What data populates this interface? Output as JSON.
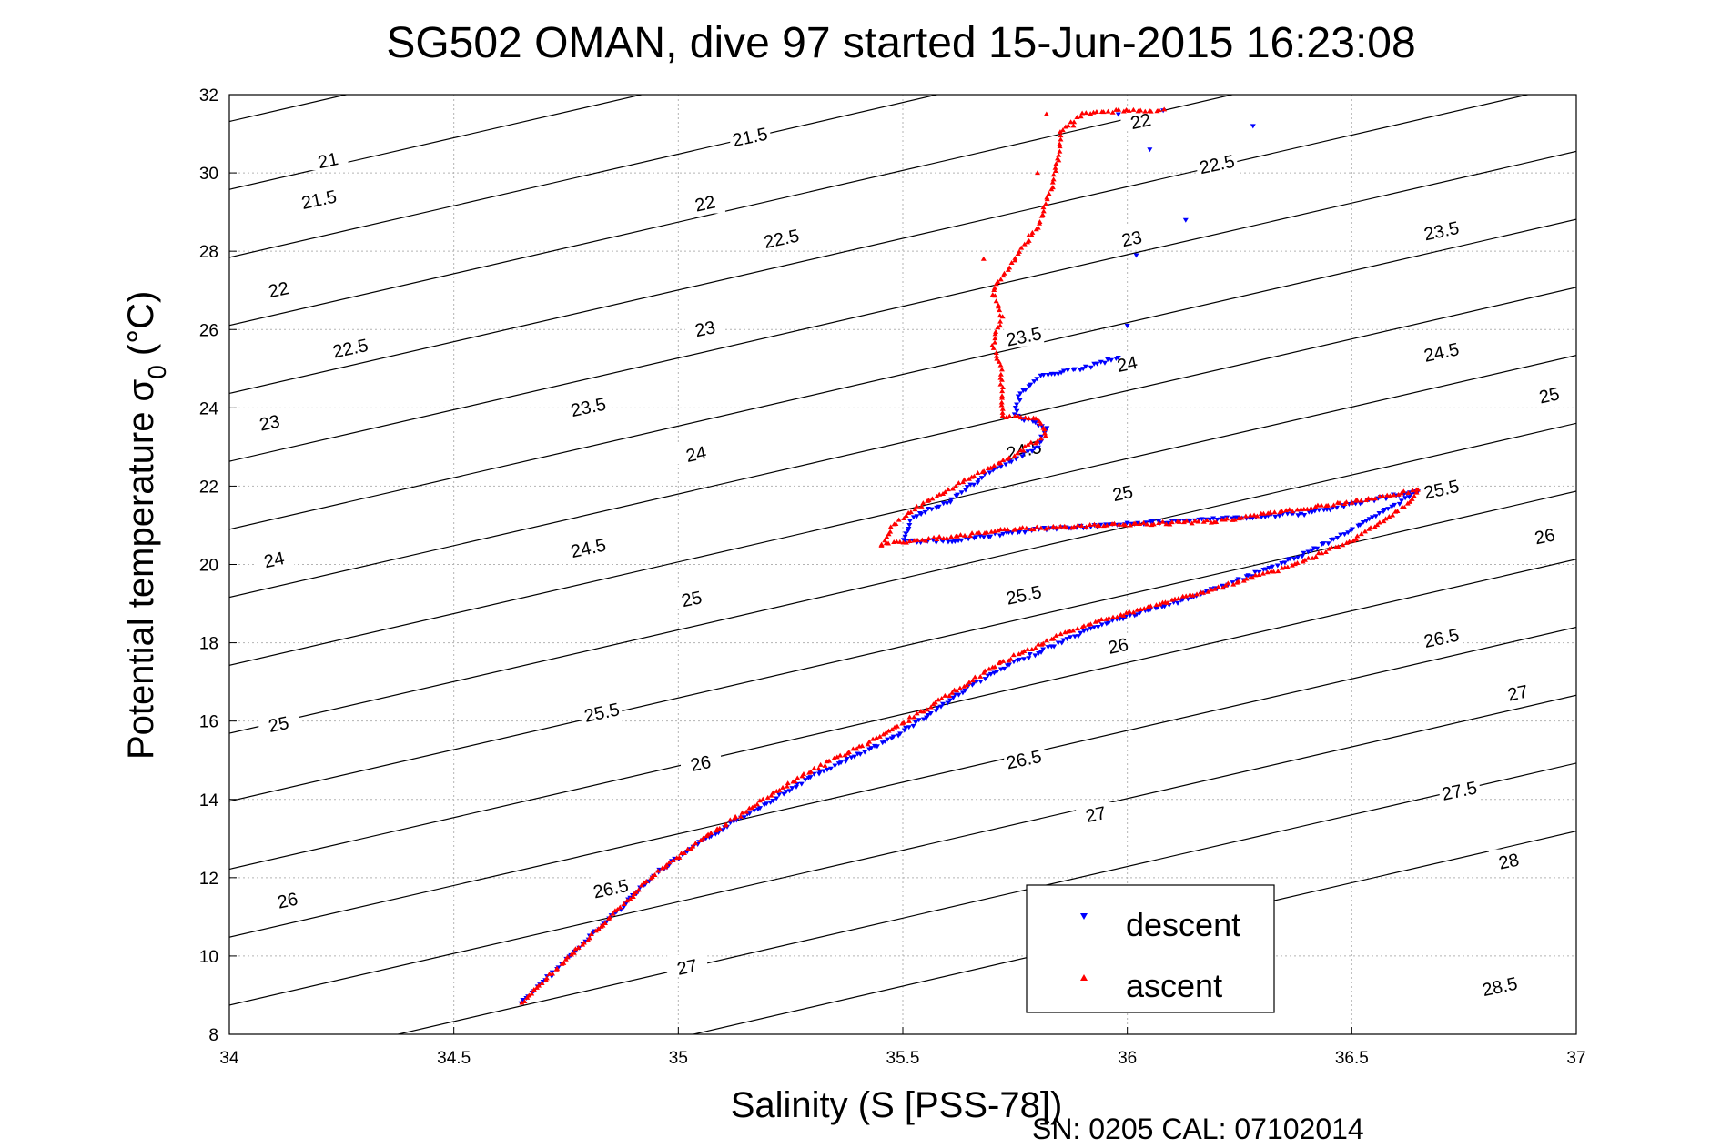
{
  "chart_data": {
    "type": "scatter",
    "title": "SG502 OMAN, dive 97 started 15-Jun-2015 16:23:08",
    "xlabel": "Salinity (S [PSS-78])",
    "ylabel_main": "Potential temperature σ",
    "ylabel_sub": "0",
    "ylabel_unit": "(°C)",
    "xlim": [
      34,
      37
    ],
    "ylim": [
      8,
      32
    ],
    "xticks": [
      "34",
      "34.5",
      "35",
      "35.5",
      "36",
      "36.5",
      "37"
    ],
    "yticks": [
      "8",
      "10",
      "12",
      "14",
      "16",
      "18",
      "20",
      "22",
      "24",
      "26",
      "28",
      "30",
      "32"
    ],
    "grid": true,
    "legend_position": "bottom-right",
    "footer": "SN: 0205  CAL: 07102014",
    "colors": {
      "descent": "#0000ff",
      "ascent": "#ff0000",
      "contour": "#000000"
    },
    "isopycnals": [
      21,
      21.5,
      22,
      22.5,
      23,
      23.5,
      24,
      24.5,
      25,
      25.5,
      26,
      26.5,
      27,
      27.5,
      28,
      28.5
    ],
    "isopycnal_labels": [
      {
        "text": "21",
        "s": 34.22,
        "t": 30.3
      },
      {
        "text": "21.5",
        "s": 34.2,
        "t": 29.3
      },
      {
        "text": "22",
        "s": 34.11,
        "t": 27.0
      },
      {
        "text": "22.5",
        "s": 34.27,
        "t": 25.5
      },
      {
        "text": "23",
        "s": 34.09,
        "t": 23.6
      },
      {
        "text": "23.5",
        "s": 34.8,
        "t": 24.0
      },
      {
        "text": "21.5",
        "s": 35.16,
        "t": 30.9
      },
      {
        "text": "22",
        "s": 35.06,
        "t": 29.2
      },
      {
        "text": "22.5",
        "s": 35.23,
        "t": 28.3
      },
      {
        "text": "23",
        "s": 35.06,
        "t": 26.0
      },
      {
        "text": "24",
        "s": 34.1,
        "t": 20.1
      },
      {
        "text": "24",
        "s": 35.04,
        "t": 22.8
      },
      {
        "text": "24.5",
        "s": 34.8,
        "t": 20.4
      },
      {
        "text": "25",
        "s": 34.11,
        "t": 15.9
      },
      {
        "text": "25",
        "s": 35.03,
        "t": 19.1
      },
      {
        "text": "25.5",
        "s": 34.83,
        "t": 16.2
      },
      {
        "text": "26",
        "s": 34.13,
        "t": 11.4
      },
      {
        "text": "26",
        "s": 35.05,
        "t": 14.9
      },
      {
        "text": "26.5",
        "s": 34.85,
        "t": 11.7
      },
      {
        "text": "27",
        "s": 35.02,
        "t": 9.7
      },
      {
        "text": "22",
        "s": 36.03,
        "t": 31.3
      },
      {
        "text": "22.5",
        "s": 36.2,
        "t": 30.2
      },
      {
        "text": "23",
        "s": 36.01,
        "t": 28.3
      },
      {
        "text": "23.5",
        "s": 35.77,
        "t": 25.8
      },
      {
        "text": "24",
        "s": 36.0,
        "t": 25.1
      },
      {
        "text": "24.5",
        "s": 35.77,
        "t": 22.9
      },
      {
        "text": "25",
        "s": 35.99,
        "t": 21.8
      },
      {
        "text": "25.5",
        "s": 35.77,
        "t": 19.2
      },
      {
        "text": "26",
        "s": 35.98,
        "t": 17.9
      },
      {
        "text": "26.5",
        "s": 35.77,
        "t": 15.0
      },
      {
        "text": "27",
        "s": 35.93,
        "t": 13.6
      },
      {
        "text": "23.5",
        "s": 36.7,
        "t": 28.5
      },
      {
        "text": "24.5",
        "s": 36.7,
        "t": 25.4
      },
      {
        "text": "25",
        "s": 36.94,
        "t": 24.3
      },
      {
        "text": "25.5",
        "s": 36.7,
        "t": 21.9
      },
      {
        "text": "26",
        "s": 36.93,
        "t": 20.7
      },
      {
        "text": "26.5",
        "s": 36.7,
        "t": 18.1
      },
      {
        "text": "27",
        "s": 36.87,
        "t": 16.7
      },
      {
        "text": "27.5",
        "s": 36.74,
        "t": 14.2
      },
      {
        "text": "28",
        "s": 36.85,
        "t": 12.4
      },
      {
        "text": "28.5",
        "s": 36.83,
        "t": 9.2
      }
    ],
    "series": [
      {
        "name": "descent",
        "marker": "triangle-down",
        "path": [
          [
            34.65,
            8.8
          ],
          [
            34.75,
            9.9
          ],
          [
            34.85,
            11.0
          ],
          [
            34.95,
            12.1
          ],
          [
            35.05,
            12.9
          ],
          [
            35.15,
            13.6
          ],
          [
            35.3,
            14.6
          ],
          [
            35.45,
            15.4
          ],
          [
            35.55,
            16.1
          ],
          [
            35.65,
            16.9
          ],
          [
            35.75,
            17.5
          ],
          [
            35.85,
            18.0
          ],
          [
            35.95,
            18.5
          ],
          [
            36.1,
            19.0
          ],
          [
            36.25,
            19.6
          ],
          [
            36.4,
            20.3
          ],
          [
            36.55,
            21.2
          ],
          [
            36.65,
            21.9
          ],
          [
            36.4,
            21.3
          ],
          [
            36.1,
            21.1
          ],
          [
            35.8,
            20.9
          ],
          [
            35.6,
            20.6
          ],
          [
            35.5,
            20.6
          ],
          [
            35.52,
            21.2
          ],
          [
            35.6,
            21.6
          ],
          [
            35.7,
            22.4
          ],
          [
            35.8,
            23.0
          ],
          [
            35.82,
            23.5
          ],
          [
            35.75,
            23.8
          ],
          [
            35.76,
            24.3
          ],
          [
            35.8,
            24.8
          ],
          [
            35.9,
            25.0
          ],
          [
            35.98,
            25.3
          ]
        ],
        "extra_points": [
          [
            36.0,
            26.1
          ],
          [
            36.02,
            27.9
          ],
          [
            36.13,
            28.8
          ],
          [
            36.05,
            30.6
          ],
          [
            36.28,
            31.2
          ],
          [
            36.08,
            31.6
          ],
          [
            35.98,
            31.5
          ]
        ]
      },
      {
        "name": "ascent",
        "marker": "triangle-up",
        "path": [
          [
            34.65,
            8.8
          ],
          [
            34.75,
            9.9
          ],
          [
            34.85,
            11.0
          ],
          [
            34.95,
            12.1
          ],
          [
            35.05,
            12.95
          ],
          [
            35.15,
            13.7
          ],
          [
            35.3,
            14.75
          ],
          [
            35.45,
            15.6
          ],
          [
            35.55,
            16.3
          ],
          [
            35.65,
            17.0
          ],
          [
            35.72,
            17.5
          ],
          [
            35.85,
            18.2
          ],
          [
            35.95,
            18.6
          ],
          [
            36.05,
            18.9
          ],
          [
            36.2,
            19.4
          ],
          [
            36.35,
            19.9
          ],
          [
            36.5,
            20.6
          ],
          [
            36.62,
            21.5
          ],
          [
            36.65,
            21.9
          ],
          [
            36.5,
            21.6
          ],
          [
            36.2,
            21.1
          ],
          [
            35.95,
            21.0
          ],
          [
            35.75,
            20.9
          ],
          [
            35.6,
            20.7
          ],
          [
            35.45,
            20.5
          ],
          [
            35.48,
            21.0
          ],
          [
            35.55,
            21.6
          ],
          [
            35.65,
            22.2
          ],
          [
            35.75,
            22.8
          ],
          [
            35.82,
            23.3
          ],
          [
            35.8,
            23.7
          ],
          [
            35.72,
            23.8
          ],
          [
            35.72,
            24.3
          ],
          [
            35.72,
            25.0
          ],
          [
            35.7,
            25.6
          ],
          [
            35.72,
            26.3
          ],
          [
            35.7,
            27.0
          ],
          [
            35.75,
            27.8
          ],
          [
            35.8,
            28.6
          ],
          [
            35.83,
            29.6
          ],
          [
            35.85,
            30.5
          ],
          [
            35.85,
            31.0
          ],
          [
            35.9,
            31.5
          ],
          [
            36.0,
            31.6
          ],
          [
            36.08,
            31.6
          ]
        ],
        "extra_points": [
          [
            35.68,
            27.8
          ],
          [
            35.78,
            28.4
          ],
          [
            35.8,
            30.0
          ],
          [
            35.88,
            31.2
          ],
          [
            35.82,
            31.5
          ]
        ]
      }
    ]
  }
}
